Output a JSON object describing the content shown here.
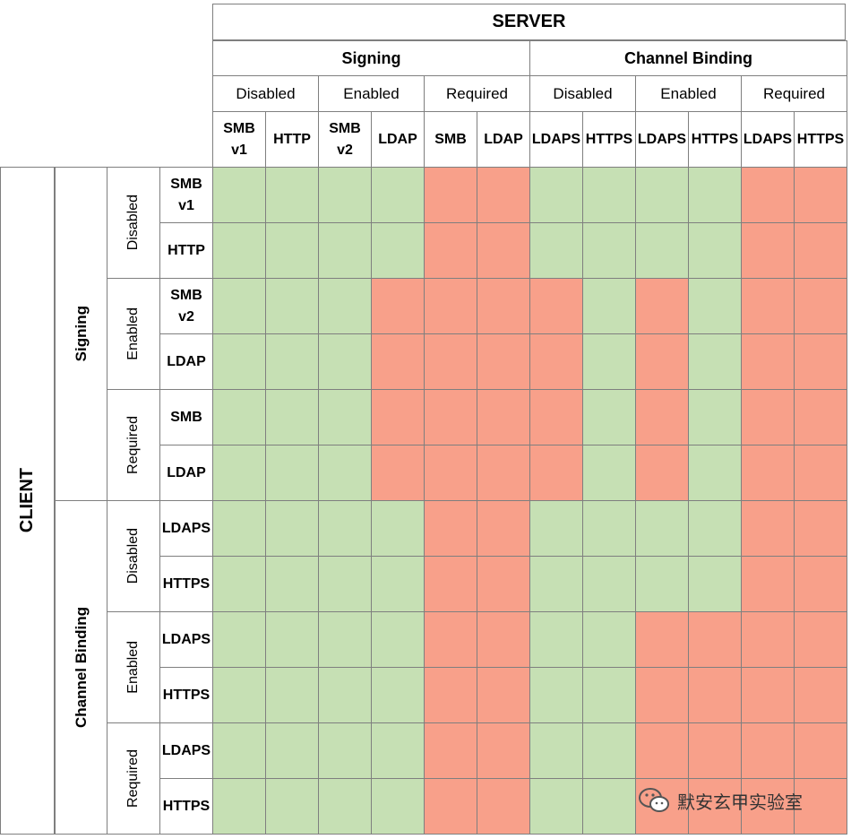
{
  "header": {
    "server": "SERVER",
    "client": "CLIENT",
    "groups": [
      {
        "label": "Signing",
        "modes": [
          {
            "label": "Disabled",
            "protocols": [
              "SMB\nv1",
              "HTTP"
            ]
          },
          {
            "label": "Enabled",
            "protocols": [
              "SMB\nv2",
              "LDAP"
            ]
          },
          {
            "label": "Required",
            "protocols": [
              "SMB",
              "LDAP"
            ]
          }
        ]
      },
      {
        "label": "Channel Binding",
        "modes": [
          {
            "label": "Disabled",
            "protocols": [
              "LDAPS",
              "HTTPS"
            ]
          },
          {
            "label": "Enabled",
            "protocols": [
              "LDAPS",
              "HTTPS"
            ]
          },
          {
            "label": "Required",
            "protocols": [
              "LDAPS",
              "HTTPS"
            ]
          }
        ]
      }
    ]
  },
  "rows": {
    "groups": [
      {
        "label": "Signing",
        "modes": [
          {
            "label": "Disabled",
            "protocols": [
              "SMB\nv1",
              "HTTP"
            ]
          },
          {
            "label": "Enabled",
            "protocols": [
              "SMB\nv2",
              "LDAP"
            ]
          },
          {
            "label": "Required",
            "protocols": [
              "SMB",
              "LDAP"
            ]
          }
        ]
      },
      {
        "label": "Channel Binding",
        "modes": [
          {
            "label": "Disabled",
            "protocols": [
              "LDAPS",
              "HTTPS"
            ]
          },
          {
            "label": "Enabled",
            "protocols": [
              "LDAPS",
              "HTTPS"
            ]
          },
          {
            "label": "Required",
            "protocols": [
              "LDAPS",
              "HTTPS"
            ]
          }
        ]
      }
    ]
  },
  "matrix": [
    "GGGGRRGGGGRR",
    "GGGGRRGGGGRR",
    "GGGRRRRGRGRR",
    "GGGRRRRGRGRR",
    "GGGRRRRGRGRR",
    "GGGRRRRGRGRR",
    "GGGGRRGGGGRR",
    "GGGGRRGGGGRR",
    "GGGGRRGGRRRR",
    "GGGGRRGGRRRR",
    "GGGGRRGGRRRR",
    "GGGGRRGGRRRR"
  ],
  "legend_colors": {
    "compatible": "#c6e0b4",
    "incompatible": "#f8a08a"
  },
  "watermark": {
    "text": "默安玄甲实验室",
    "icon": "wechat-icon"
  }
}
